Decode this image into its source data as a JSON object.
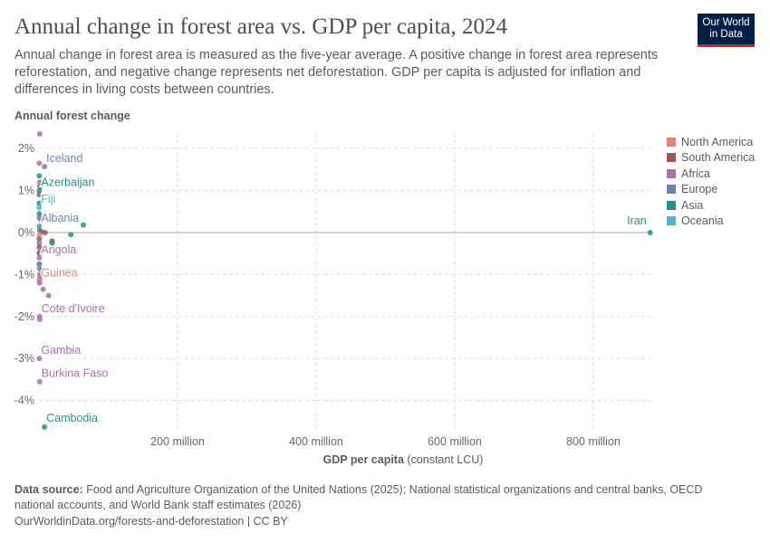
{
  "title": "Annual change in forest area vs. GDP per capita, 2024",
  "subtitle": "Annual change in forest area is measured as the five-year average. A positive change in forest area represents reforestation, and negative change represents net deforestation. GDP per capita is adjusted for inflation and differences in living costs between countries.",
  "logo": {
    "line1": "Our World",
    "line2": "in Data"
  },
  "footer": {
    "source_label": "Data source:",
    "source": " Food and Agriculture Organization of the United Nations (2025); National statistical organizations and central banks, OECD national accounts, and World Bank staff estimates (2026)",
    "url": "OurWorldinData.org/forests-and-deforestation | CC BY"
  },
  "chart_data": {
    "type": "scatter",
    "title": "Annual change in forest area vs. GDP per capita, 2024",
    "ylabel": "Annual forest change",
    "xlabel": "GDP per capita",
    "xlabel_unit": " (constant LCU)",
    "xlim": [
      0,
      890
    ],
    "ylim": [
      -4.8,
      2.5
    ],
    "xticks": [
      {
        "v": 200,
        "label": "200 million"
      },
      {
        "v": 400,
        "label": "400 million"
      },
      {
        "v": 600,
        "label": "600 million"
      },
      {
        "v": 800,
        "label": "800 million"
      }
    ],
    "yticks": [
      {
        "v": 2,
        "label": "2%"
      },
      {
        "v": 1,
        "label": "1%"
      },
      {
        "v": 0,
        "label": "0%"
      },
      {
        "v": -1,
        "label": "-1%"
      },
      {
        "v": -2,
        "label": "-2%"
      },
      {
        "v": -3,
        "label": "-3%"
      },
      {
        "v": -4,
        "label": "-4%"
      }
    ],
    "grid": true,
    "legend_position": "right",
    "colors": {
      "North America": "#e6846f",
      "South America": "#a2525f",
      "Africa": "#b26cb2",
      "Europe": "#6d82b2",
      "Asia": "#1f9488",
      "Oceania": "#4cb5c5"
    },
    "legend": [
      "North America",
      "South America",
      "Africa",
      "Europe",
      "Asia",
      "Oceania"
    ],
    "points": [
      {
        "x": 1,
        "y": 2.35,
        "r": "Africa"
      },
      {
        "x": 8,
        "y": 1.57,
        "r": "Europe",
        "label": "Iceland"
      },
      {
        "x": 0.5,
        "y": 1.65,
        "r": "Africa"
      },
      {
        "x": 0.5,
        "y": 1.35,
        "r": "Asia"
      },
      {
        "x": 1,
        "y": 1.2,
        "r": "Africa"
      },
      {
        "x": 1,
        "y": 1.1,
        "r": "Europe"
      },
      {
        "x": 0.5,
        "y": 1.0,
        "r": "Asia",
        "label": "Azerbaijan"
      },
      {
        "x": 0.5,
        "y": 0.9,
        "r": "South America"
      },
      {
        "x": 0.5,
        "y": 0.7,
        "r": "Asia"
      },
      {
        "x": 0.3,
        "y": 0.6,
        "r": "Oceania",
        "label": "Fiji"
      },
      {
        "x": 0.5,
        "y": 0.45,
        "r": "Asia"
      },
      {
        "x": 0.5,
        "y": 0.35,
        "r": "Europe"
      },
      {
        "x": 3,
        "y": 0.3,
        "r": "Europe"
      },
      {
        "x": 0.5,
        "y": 0.15,
        "r": "Europe",
        "label": "Albania"
      },
      {
        "x": 64,
        "y": 0.18,
        "r": "Asia"
      },
      {
        "x": 1,
        "y": 0.05,
        "r": "Asia"
      },
      {
        "x": 4,
        "y": 0.02,
        "r": "South America"
      },
      {
        "x": 9,
        "y": 0.0,
        "r": "South America"
      },
      {
        "x": 46,
        "y": -0.05,
        "r": "Asia"
      },
      {
        "x": 0.5,
        "y": -0.05,
        "r": "North America"
      },
      {
        "x": 0.5,
        "y": -0.15,
        "r": "South America"
      },
      {
        "x": 0.5,
        "y": -0.25,
        "r": "Europe"
      },
      {
        "x": 19,
        "y": -0.2,
        "r": "South America"
      },
      {
        "x": 19,
        "y": -0.25,
        "r": "Asia"
      },
      {
        "x": 0.5,
        "y": -0.35,
        "r": "South America"
      },
      {
        "x": 1,
        "y": -0.45,
        "r": "Oceania"
      },
      {
        "x": 0.5,
        "y": -0.5,
        "r": "South America"
      },
      {
        "x": 0.5,
        "y": -0.6,
        "r": "Africa",
        "label": "Angola"
      },
      {
        "x": 0.5,
        "y": -0.75,
        "r": "Asia"
      },
      {
        "x": 0.5,
        "y": -0.85,
        "r": "Africa"
      },
      {
        "x": 4,
        "y": -0.9,
        "r": "Asia"
      },
      {
        "x": 1,
        "y": -1.0,
        "r": "Africa"
      },
      {
        "x": 1,
        "y": -1.1,
        "r": "Africa"
      },
      {
        "x": 0.5,
        "y": -1.15,
        "r": "North America",
        "label": "Guinea"
      },
      {
        "x": 1,
        "y": -1.2,
        "r": "Africa"
      },
      {
        "x": 6,
        "y": -1.35,
        "r": "Africa"
      },
      {
        "x": 14,
        "y": -1.5,
        "r": "Africa"
      },
      {
        "x": 1,
        "y": -2.0,
        "r": "Africa",
        "label": "Cote d'Ivoire"
      },
      {
        "x": 1,
        "y": -2.07,
        "r": "Africa"
      },
      {
        "x": 0.5,
        "y": -3.0,
        "r": "Africa",
        "label": "Gambia"
      },
      {
        "x": 1,
        "y": -3.55,
        "r": "Africa",
        "label": "Burkina Faso"
      },
      {
        "x": 8,
        "y": -4.63,
        "r": "Asia",
        "label": "Cambodia"
      },
      {
        "x": 882,
        "y": 0.0,
        "r": "Asia",
        "label": "Iran"
      }
    ]
  }
}
